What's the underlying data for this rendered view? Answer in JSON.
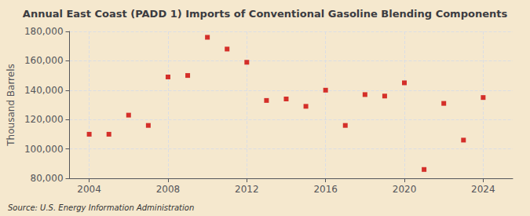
{
  "chart_data": {
    "type": "scatter",
    "title": "Annual East Coast (PADD 1) Imports of Conventional Gasoline Blending Components",
    "ylabel": "Thousand Barrels",
    "source": "Source: U.S. Energy Information Administration",
    "x": [
      2004,
      2005,
      2006,
      2007,
      2008,
      2009,
      2010,
      2011,
      2012,
      2013,
      2014,
      2015,
      2016,
      2017,
      2018,
      2019,
      2020,
      2021,
      2022,
      2023,
      2024
    ],
    "values": [
      110000,
      110000,
      123000,
      116000,
      149000,
      150000,
      176000,
      168000,
      159000,
      133000,
      134000,
      129000,
      140000,
      116000,
      137000,
      136000,
      145000,
      86000,
      131000,
      106000,
      135000
    ],
    "color": "#cc0000",
    "marker": "square",
    "xlim": [
      2003,
      2025.5
    ],
    "xticks": [
      2004,
      2008,
      2012,
      2016,
      2020,
      2024
    ],
    "ylim": [
      80000,
      180000
    ],
    "yticks": [
      {
        "value": 80000,
        "label": "80,000"
      },
      {
        "value": 100000,
        "label": "100,000"
      },
      {
        "value": 120000,
        "label": "120,000"
      },
      {
        "value": 140000,
        "label": "140,000"
      },
      {
        "value": 160000,
        "label": "160,000"
      },
      {
        "value": 180000,
        "label": "180,000"
      }
    ],
    "grid": true
  }
}
